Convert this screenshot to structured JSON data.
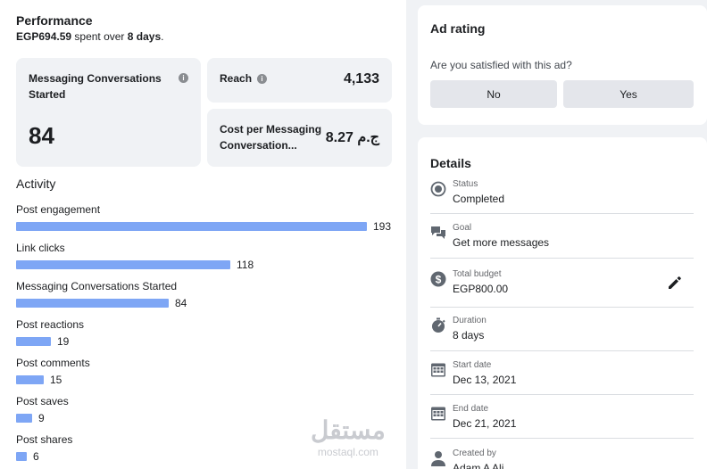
{
  "performance": {
    "title": "Performance",
    "spent_amount": "EGP694.59",
    "spent_middle": "spent over",
    "spent_days": "8 days",
    "spent_end": "."
  },
  "metrics": {
    "messaging": {
      "label": "Messaging Conversations Started",
      "value": "84"
    },
    "reach": {
      "label": "Reach",
      "value": "4,133"
    },
    "cost": {
      "label": "Cost per Messaging Conversation...",
      "value": "8.27 ج.م"
    }
  },
  "activity": {
    "title": "Activity",
    "max": 193,
    "items": [
      {
        "label": "Post engagement",
        "value": 193
      },
      {
        "label": "Link clicks",
        "value": 118
      },
      {
        "label": "Messaging Conversations Started",
        "value": 84
      },
      {
        "label": "Post reactions",
        "value": 19
      },
      {
        "label": "Post comments",
        "value": 15
      },
      {
        "label": "Post saves",
        "value": 9
      },
      {
        "label": "Post shares",
        "value": 6
      }
    ]
  },
  "watermark": {
    "arabic": "مستقل",
    "latin": "mostaql.com"
  },
  "ad_rating": {
    "title": "Ad rating",
    "question": "Are you satisfied with this ad?",
    "no_label": "No",
    "yes_label": "Yes"
  },
  "details": {
    "title": "Details",
    "rows": [
      {
        "label": "Status",
        "value": "Completed",
        "icon": "status-radio-icon"
      },
      {
        "label": "Goal",
        "value": "Get more messages",
        "icon": "chat-bubbles-icon"
      },
      {
        "label": "Total budget",
        "value": "EGP800.00",
        "icon": "dollar-coin-icon"
      },
      {
        "label": "Duration",
        "value": "8 days",
        "icon": "stopwatch-icon"
      },
      {
        "label": "Start date",
        "value": "Dec 13, 2021",
        "icon": "calendar-icon"
      },
      {
        "label": "End date",
        "value": "Dec 21, 2021",
        "icon": "calendar-icon"
      },
      {
        "label": "Created by",
        "value": "Adam A Ali",
        "icon": "person-icon"
      }
    ],
    "edit_icon": "pencil-edit-icon"
  },
  "colors": {
    "bar": "#7ea6f5",
    "page_bg": "#f0f2f5",
    "button_bg": "#e4e6eb"
  }
}
